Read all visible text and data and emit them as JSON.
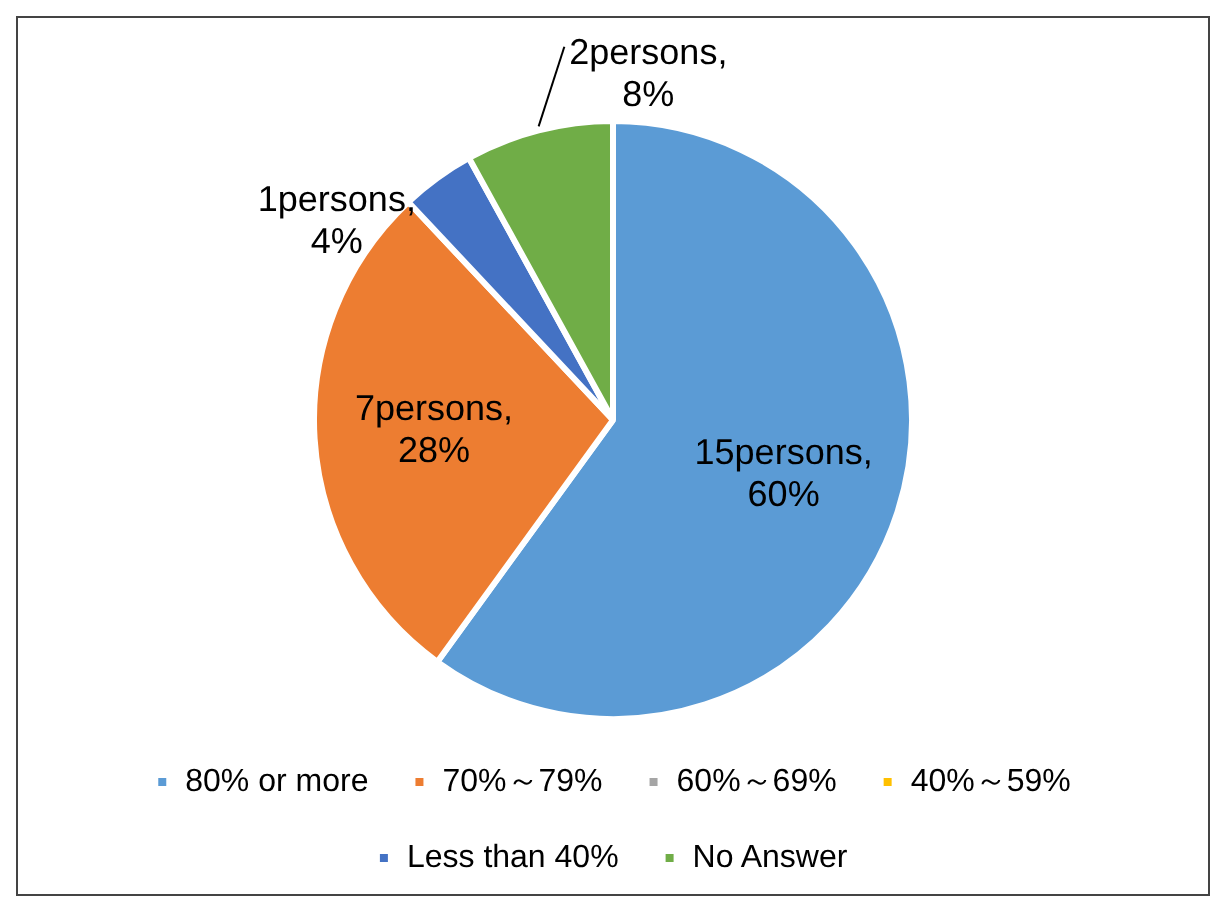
{
  "chart_data": {
    "type": "pie",
    "categories": [
      "80% or more",
      "70%～79%",
      "60%～69%",
      "40%～59%",
      "Less than 40%",
      "No Answer"
    ],
    "values": [
      15,
      7,
      0,
      0,
      1,
      2
    ],
    "colors": [
      "#5b9bd5",
      "#ed7d31",
      "#a5a5a5",
      "#ffc000",
      "#4472c4",
      "#70ad47"
    ],
    "value_labels": [
      "15persons,\n60%",
      "7persons,\n28%",
      null,
      null,
      "1persons,\n4%",
      "2persons,\n8%"
    ],
    "legend": "bottom"
  }
}
